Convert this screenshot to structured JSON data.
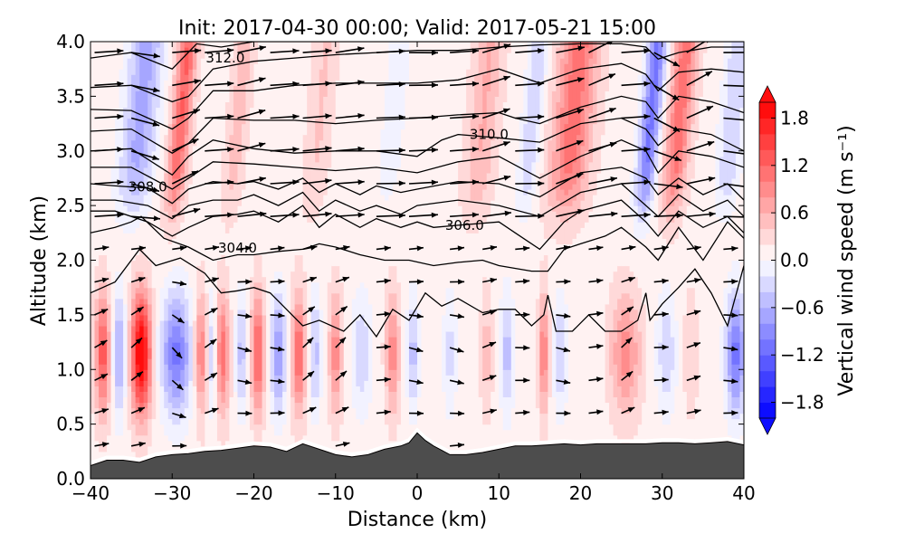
{
  "chart_data": {
    "type": "heatmap",
    "title": "Init: 2017-04-30 00:00; Valid: 2017-05-21 15:00",
    "xlabel": "Distance (km)",
    "ylabel": "Altitude (km)",
    "xlim": [
      -40,
      40
    ],
    "ylim": [
      0,
      4
    ],
    "xticks": [
      -40,
      -30,
      -20,
      -10,
      0,
      10,
      20,
      30,
      40
    ],
    "xtick_labels": [
      "−40",
      "−30",
      "−20",
      "−10",
      "0",
      "10",
      "20",
      "30",
      "40"
    ],
    "yticks": [
      0.0,
      0.5,
      1.0,
      1.5,
      2.0,
      2.5,
      3.0,
      3.5,
      4.0
    ],
    "ytick_labels": [
      "0.0",
      "0.5",
      "1.0",
      "1.5",
      "2.0",
      "2.5",
      "3.0",
      "3.5",
      "4.0"
    ],
    "colorbar": {
      "label": "Vertical wind speed (m s⁻¹)",
      "levels_min": -2.0,
      "levels_max": 2.0,
      "level_step": 0.2,
      "extend": "both",
      "cmap": "bwr",
      "ticks": [
        1.8,
        1.2,
        0.6,
        0.0,
        -0.6,
        -1.2,
        -1.8
      ],
      "tick_labels": [
        "1.8",
        "1.2",
        "0.6",
        "0.0",
        "−0.6",
        "−1.2",
        "−1.8"
      ]
    },
    "shading_note": "Vertical wind speed (m/s) as alternating updraft/downdraft columns; low-level columns below ~2 km, upper-level tilted columns above ~2.3 km",
    "low_level_columns": [
      {
        "x": -38.5,
        "w": 1.2,
        "width": 1.6
      },
      {
        "x": -36.5,
        "w": -0.8,
        "width": 1.4
      },
      {
        "x": -33.8,
        "w": 2.0,
        "width": 2.0
      },
      {
        "x": -29.5,
        "w": -1.2,
        "width": 3.0
      },
      {
        "x": -26.5,
        "w": 0.9,
        "width": 1.3
      },
      {
        "x": -25.2,
        "w": -0.5,
        "width": 0.8
      },
      {
        "x": -23.8,
        "w": 1.0,
        "width": 1.3
      },
      {
        "x": -21.5,
        "w": -0.6,
        "width": 1.2
      },
      {
        "x": -19.5,
        "w": 1.2,
        "width": 1.3
      },
      {
        "x": -17.0,
        "w": -0.9,
        "width": 1.6
      },
      {
        "x": -14.5,
        "w": 1.1,
        "width": 1.4
      },
      {
        "x": -12.5,
        "w": -0.6,
        "width": 1.2
      },
      {
        "x": -10.0,
        "w": 0.8,
        "width": 1.3
      },
      {
        "x": -6.8,
        "w": -0.5,
        "width": 2.0
      },
      {
        "x": -3.0,
        "w": 0.8,
        "width": 1.4
      },
      {
        "x": -0.5,
        "w": -0.6,
        "width": 1.2
      },
      {
        "x": 4.0,
        "w": -0.4,
        "width": 1.4
      },
      {
        "x": 8.5,
        "w": 0.4,
        "width": 1.2
      },
      {
        "x": 11.0,
        "w": -0.6,
        "width": 1.4
      },
      {
        "x": 15.5,
        "w": 0.9,
        "width": 1.0
      },
      {
        "x": 17.5,
        "w": -0.5,
        "width": 1.4
      },
      {
        "x": 25.5,
        "w": 0.8,
        "width": 3.0
      },
      {
        "x": 30.5,
        "w": -0.5,
        "width": 2.0
      },
      {
        "x": 33.5,
        "w": 0.3,
        "width": 1.4
      },
      {
        "x": 39.0,
        "w": -1.2,
        "width": 2.0
      }
    ],
    "upper_level_columns": [
      {
        "x": -34.0,
        "w": -0.8,
        "width": 3.5
      },
      {
        "x": -29.0,
        "w": 1.1,
        "width": 2.0
      },
      {
        "x": -22.0,
        "w": 0.4,
        "width": 2.0
      },
      {
        "x": -12.0,
        "w": 0.3,
        "width": 2.5
      },
      {
        "x": -3.0,
        "w": -0.2,
        "width": 3.0
      },
      {
        "x": 8.0,
        "w": 0.5,
        "width": 3.0
      },
      {
        "x": 14.0,
        "w": -0.5,
        "width": 2.0
      },
      {
        "x": 19.0,
        "w": 1.0,
        "width": 4.0
      },
      {
        "x": 28.5,
        "w": -1.2,
        "width": 2.0
      },
      {
        "x": 32.0,
        "w": 1.0,
        "width": 2.5
      },
      {
        "x": 38.5,
        "w": -0.5,
        "width": 2.5
      }
    ],
    "contours": {
      "variable": "potential temperature (K)",
      "labels": [
        {
          "text": "312.0",
          "x": -23.5,
          "y": 3.85
        },
        {
          "text": "310.0",
          "x": 8.8,
          "y": 3.15
        },
        {
          "text": "308.0",
          "x": -33.0,
          "y": 2.67
        },
        {
          "text": "306.0",
          "x": 5.8,
          "y": 2.32
        },
        {
          "text": "304.0",
          "x": -22.0,
          "y": 2.11
        }
      ],
      "lines": [
        {
          "x": [
            -40,
            -35,
            -30,
            -27,
            -24,
            -20,
            -15,
            -10,
            -5,
            0,
            5,
            10,
            15,
            20,
            25,
            28,
            30,
            33,
            36,
            40
          ],
          "y": [
            3.85,
            3.9,
            3.75,
            3.98,
            3.95,
            4.0,
            4.0,
            4.0,
            4.0,
            4.0,
            4.0,
            4.0,
            4.0,
            4.0,
            4.0,
            4.0,
            4.0,
            4.0,
            4.0,
            4.0
          ]
        },
        {
          "x": [
            -40,
            -35,
            -30,
            -28,
            -25,
            -20,
            -15,
            -10,
            -5,
            0,
            5,
            10,
            15,
            20,
            25,
            28,
            29.5,
            32,
            36,
            40
          ],
          "y": [
            3.58,
            3.6,
            3.45,
            3.5,
            3.75,
            3.82,
            3.85,
            3.88,
            3.9,
            3.92,
            3.92,
            3.95,
            3.97,
            3.98,
            3.98,
            3.95,
            3.84,
            3.9,
            3.95,
            3.95
          ]
        },
        {
          "x": [
            -40,
            -35,
            -30,
            -28,
            -25,
            -20,
            -15,
            -10,
            -5,
            0,
            5,
            10,
            15,
            20,
            25,
            28,
            29.5,
            32,
            36,
            40
          ],
          "y": [
            3.38,
            3.37,
            3.2,
            3.3,
            3.55,
            3.55,
            3.6,
            3.62,
            3.62,
            3.62,
            3.65,
            3.75,
            3.62,
            3.75,
            3.8,
            3.7,
            3.55,
            3.72,
            3.75,
            3.72
          ]
        },
        {
          "x": [
            -40,
            -35,
            -30,
            -28,
            -25,
            -20,
            -15,
            -10,
            -5,
            0,
            5,
            10,
            12,
            15,
            20,
            25,
            28,
            29.5,
            32,
            36,
            40
          ],
          "y": [
            3.18,
            3.2,
            2.98,
            3.07,
            3.3,
            3.28,
            3.28,
            3.25,
            3.28,
            3.3,
            3.33,
            3.35,
            3.3,
            3.25,
            3.4,
            3.5,
            3.45,
            3.3,
            3.5,
            3.45,
            3.35
          ]
        },
        {
          "x": [
            -40,
            -35,
            -30,
            -28,
            -25,
            -20,
            -15,
            -10,
            -5,
            0,
            3,
            5,
            10,
            15,
            20,
            25,
            28,
            29.5,
            32,
            36,
            40
          ],
          "y": [
            3.0,
            3.02,
            2.78,
            2.95,
            3.1,
            3.02,
            2.98,
            3.0,
            3.0,
            2.95,
            3.1,
            3.15,
            3.12,
            3.08,
            3.25,
            3.3,
            3.2,
            3.05,
            3.2,
            3.15,
            3.0
          ]
        },
        {
          "x": [
            -40,
            -35,
            -30,
            -28,
            -25,
            -20,
            -15,
            -10,
            -5,
            0,
            5,
            10,
            15,
            20,
            25,
            28,
            29.5,
            32,
            36,
            40
          ],
          "y": [
            2.85,
            2.85,
            2.65,
            2.75,
            2.9,
            2.88,
            2.85,
            2.82,
            2.85,
            2.8,
            2.9,
            2.95,
            2.75,
            2.95,
            3.1,
            3.0,
            2.8,
            3.0,
            2.95,
            2.85
          ]
        },
        {
          "x": [
            -40,
            -37,
            -33,
            -30,
            -28,
            -25,
            -22,
            -20,
            -17,
            -14,
            -12,
            -10,
            -7,
            -5,
            -2,
            0,
            5,
            10,
            15,
            20,
            25,
            28,
            29.5,
            32,
            35,
            38,
            40
          ],
          "y": [
            2.7,
            2.68,
            2.66,
            2.52,
            2.65,
            2.72,
            2.7,
            2.72,
            2.65,
            2.75,
            2.62,
            2.7,
            2.6,
            2.68,
            2.62,
            2.65,
            2.72,
            2.7,
            2.58,
            2.8,
            2.85,
            2.75,
            2.6,
            2.75,
            2.6,
            2.7,
            2.55
          ]
        },
        {
          "x": [
            -40,
            -37,
            -33,
            -30,
            -28,
            -25,
            -22,
            -20,
            -17,
            -14,
            -12,
            -10,
            -7,
            -5,
            -2,
            0,
            5,
            10,
            15,
            20,
            25,
            28,
            29.5,
            32,
            35,
            38,
            40
          ],
          "y": [
            2.55,
            2.55,
            2.5,
            2.38,
            2.5,
            2.55,
            2.55,
            2.6,
            2.5,
            2.62,
            2.45,
            2.55,
            2.45,
            2.5,
            2.42,
            2.5,
            2.55,
            2.5,
            2.4,
            2.62,
            2.7,
            2.5,
            2.4,
            2.6,
            2.45,
            2.55,
            2.4
          ]
        },
        {
          "x": [
            -40,
            -37,
            -33,
            -30,
            -28,
            -25,
            -22,
            -20,
            -17,
            -14,
            -12,
            -10,
            -7,
            -5,
            -2,
            0,
            2,
            5,
            10,
            12,
            15,
            18,
            20,
            25,
            28,
            29.5,
            32,
            35,
            38,
            40
          ],
          "y": [
            2.45,
            2.45,
            2.35,
            2.22,
            2.3,
            2.4,
            2.42,
            2.45,
            2.35,
            2.5,
            2.3,
            2.42,
            2.3,
            2.38,
            2.3,
            2.35,
            2.3,
            2.32,
            2.35,
            2.25,
            2.1,
            2.35,
            2.45,
            2.55,
            2.35,
            2.22,
            2.45,
            2.3,
            2.4,
            2.25
          ]
        },
        {
          "x": [
            -40,
            -37,
            -35,
            -33.8,
            -31,
            -28,
            -25,
            -22,
            -20,
            -17,
            -14,
            -12,
            -10,
            -7,
            -4,
            -1,
            2,
            5,
            8,
            10,
            14,
            16,
            18,
            20,
            23,
            25,
            28,
            29.5,
            32,
            35,
            38,
            40
          ],
          "y": [
            2.25,
            2.3,
            2.35,
            2.4,
            2.2,
            2.12,
            2.0,
            2.05,
            2.05,
            2.08,
            2.1,
            2.15,
            2.12,
            2.05,
            2.0,
            2.0,
            1.95,
            1.98,
            2.0,
            1.95,
            1.9,
            1.9,
            2.1,
            2.15,
            2.22,
            2.3,
            2.12,
            2.0,
            2.3,
            2.0,
            2.35,
            2.2
          ]
        },
        {
          "x": [
            -40,
            -37,
            -34,
            -32,
            -29,
            -26,
            -24,
            -22,
            -20,
            -18,
            -16,
            -14,
            -12,
            -9,
            -7,
            -5,
            -3,
            -1,
            1,
            3,
            5,
            8,
            10,
            12,
            14,
            15.5,
            16,
            17,
            19,
            21,
            23,
            25,
            27,
            28,
            28.5,
            30,
            32,
            34,
            36,
            38,
            40
          ],
          "y": [
            1.7,
            1.8,
            2.1,
            1.95,
            2.02,
            1.88,
            1.7,
            1.72,
            1.75,
            1.7,
            1.55,
            1.4,
            1.45,
            1.35,
            1.5,
            1.3,
            1.55,
            1.45,
            1.7,
            1.58,
            1.65,
            1.52,
            1.55,
            1.55,
            1.4,
            1.5,
            1.68,
            1.35,
            1.35,
            1.5,
            1.35,
            1.35,
            1.45,
            1.7,
            1.45,
            1.6,
            1.75,
            1.92,
            1.7,
            1.4,
            1.95
          ]
        }
      ]
    },
    "terrain": {
      "x": [
        -40,
        -38,
        -36,
        -34,
        -32,
        -30,
        -28,
        -26,
        -24,
        -22,
        -20,
        -18,
        -16,
        -14,
        -12,
        -10,
        -8,
        -6,
        -4,
        -2,
        -1,
        0,
        1,
        2,
        3,
        4,
        6,
        8,
        10,
        12,
        14,
        16,
        18,
        20,
        22,
        24,
        26,
        28,
        30,
        32,
        34,
        36,
        38,
        40
      ],
      "y": [
        0.12,
        0.17,
        0.17,
        0.15,
        0.2,
        0.22,
        0.23,
        0.25,
        0.26,
        0.28,
        0.3,
        0.29,
        0.25,
        0.32,
        0.27,
        0.22,
        0.2,
        0.22,
        0.27,
        0.3,
        0.33,
        0.42,
        0.35,
        0.3,
        0.26,
        0.22,
        0.22,
        0.24,
        0.27,
        0.3,
        0.3,
        0.31,
        0.32,
        0.31,
        0.32,
        0.32,
        0.32,
        0.32,
        0.33,
        0.33,
        0.32,
        0.33,
        0.34,
        0.31
      ]
    },
    "vectors": {
      "description": "Wind vectors (u, w scaled); upper levels predominantly westerly pointing right, lower levels alternating up-right and down-right following vertical motion",
      "x": [
        -39.5,
        -35,
        -30,
        -26,
        -22,
        -18,
        -14,
        -10,
        -5,
        -1,
        4,
        8,
        12,
        17,
        21,
        25,
        29,
        33,
        37.5
      ],
      "y": [
        0.3,
        0.6,
        0.9,
        1.2,
        1.5,
        1.8,
        2.1,
        2.4,
        2.7,
        3.0,
        3.3,
        3.6,
        3.9
      ]
    }
  }
}
